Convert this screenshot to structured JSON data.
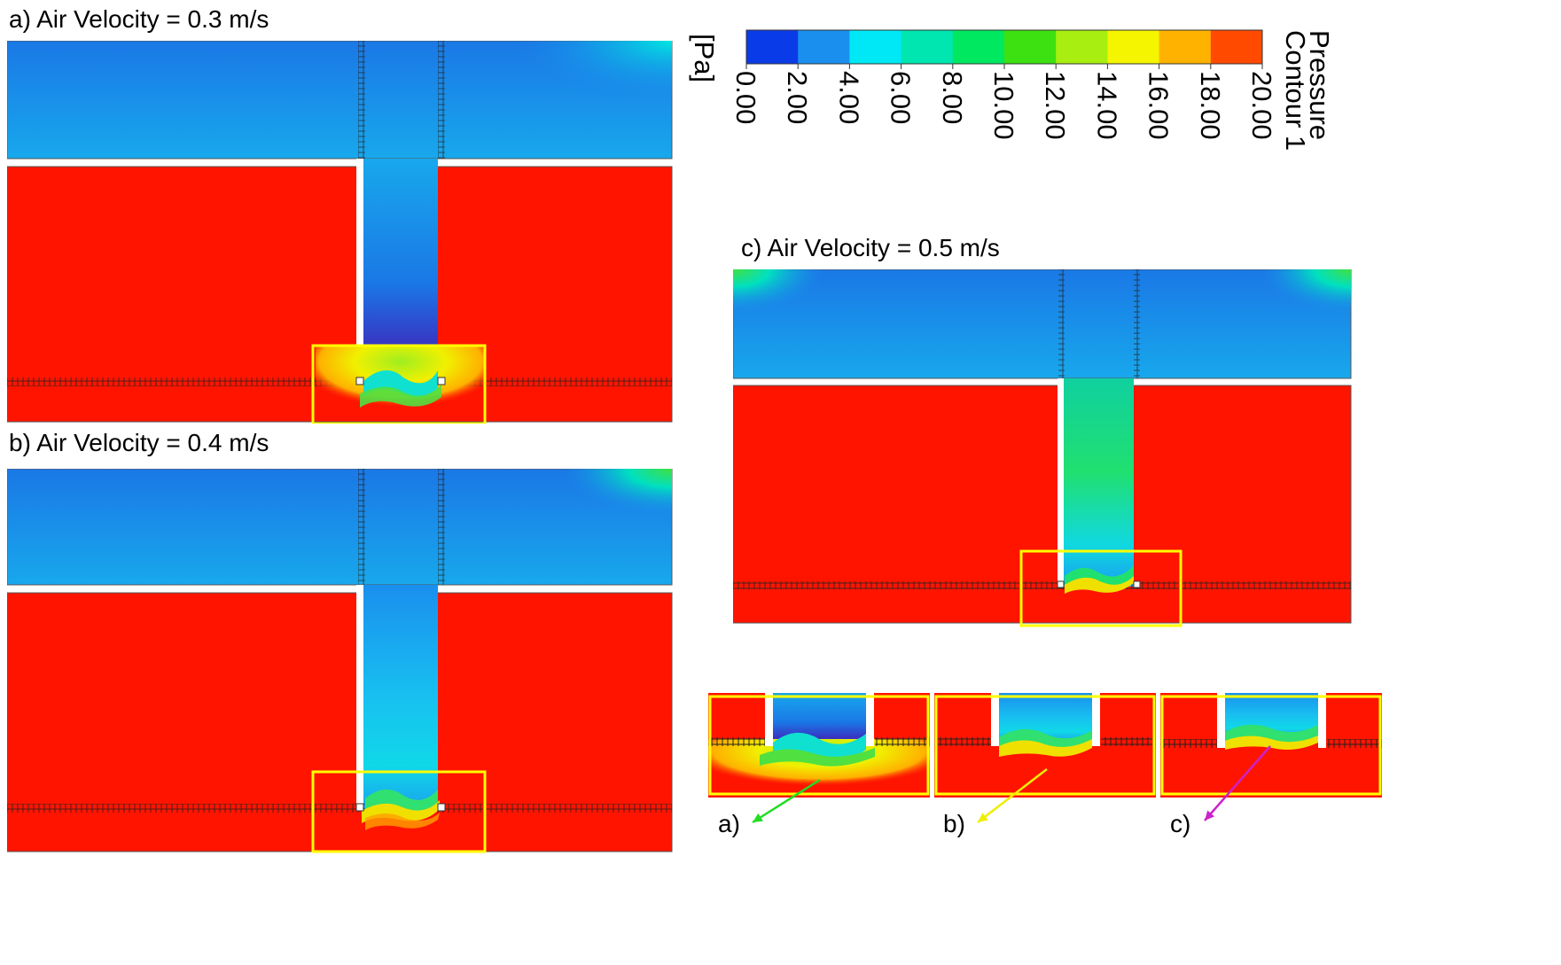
{
  "panels": {
    "a": {
      "title": "a) Air Velocity = 0.3 m/s"
    },
    "b": {
      "title": "b) Air Velocity = 0.4 m/s"
    },
    "c": {
      "title": "c) Air Velocity = 0.5 m/s"
    }
  },
  "legend": {
    "title_line1": "Pressure",
    "title_line2": "Contour 1",
    "unit": "[Pa]",
    "ticks": [
      "0.00",
      "2.00",
      "4.00",
      "6.00",
      "8.00",
      "10.00",
      "12.00",
      "14.00",
      "16.00",
      "18.00",
      "20.00"
    ],
    "colors": [
      "#0a3be8",
      "#1a8fee",
      "#00e8f5",
      "#00e6b0",
      "#00e860",
      "#3de010",
      "#a8ee10",
      "#f5f500",
      "#ffb300",
      "#ff4a00"
    ]
  },
  "zoom_labels": [
    "a)",
    "b)",
    "c)"
  ],
  "arrow_colors": [
    "#22dd22",
    "#eeee00",
    "#cc22cc"
  ],
  "highlight_color": "#ffff00"
}
